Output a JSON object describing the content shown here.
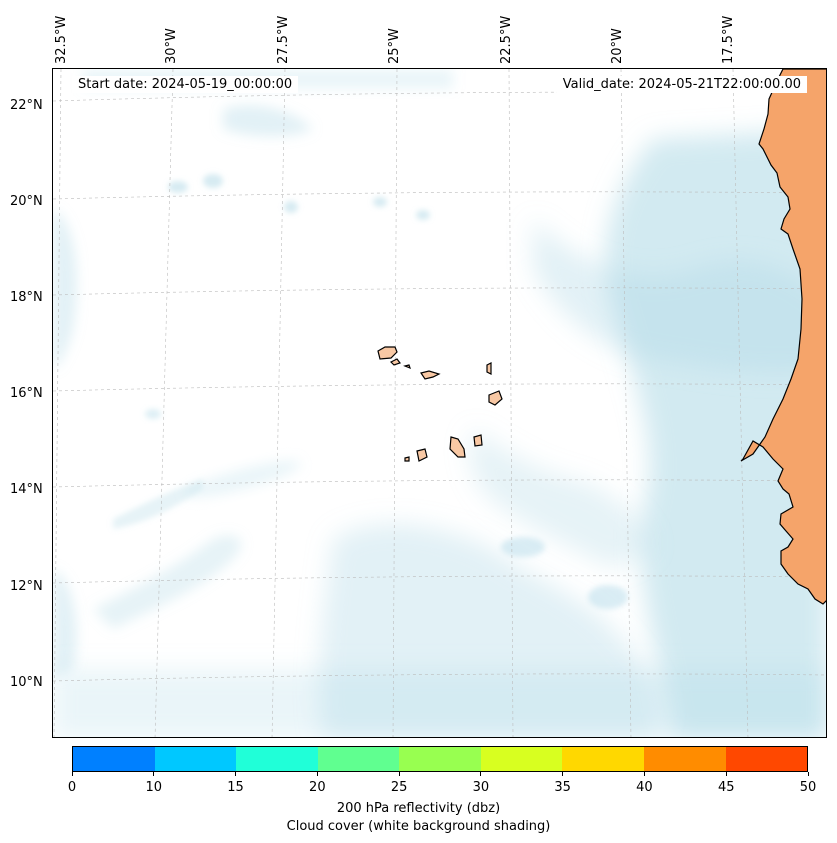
{
  "map": {
    "start_date": "Start date: 2024-05-19_00:00:00",
    "valid_date": "Valid_date: 2024-05-21T22:00:00.00",
    "lat_labels": [
      "22°N",
      "20°N",
      "18°N",
      "16°N",
      "14°N",
      "12°N",
      "10°N"
    ],
    "lon_labels": [
      "32.5°W",
      "30°W",
      "27.5°W",
      "25°W",
      "22.5°W",
      "20°W",
      "17.5°W"
    ],
    "land_color": "#f5a46a",
    "island_color": "#f8c8a4",
    "cloud_color": "#add8e6"
  },
  "colorbar": {
    "ticks": [
      "0",
      "10",
      "15",
      "20",
      "25",
      "30",
      "35",
      "40",
      "45",
      "50"
    ],
    "colors": [
      "#0080ff",
      "#00c8ff",
      "#20ffd8",
      "#60ff90",
      "#98ff50",
      "#d8ff20",
      "#ffd800",
      "#ff8c00",
      "#ff4800"
    ],
    "label_line1": "200 hPa reflectivity (dbz)",
    "label_line2": "Cloud cover (white background shading)"
  }
}
